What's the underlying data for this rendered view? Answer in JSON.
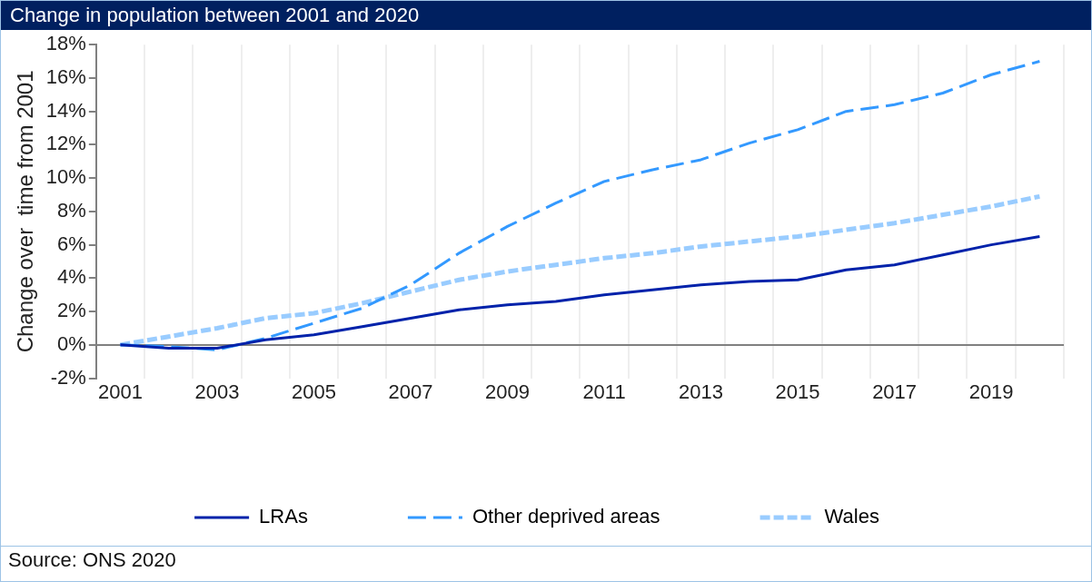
{
  "chart_data": {
    "type": "line",
    "title": "Change in population between 2001 and 2020",
    "ylabel": "Change over  time from 2001",
    "categories": [
      "2001",
      null,
      "2003",
      null,
      "2005",
      null,
      "2007",
      null,
      "2009",
      null,
      "2011",
      null,
      "2013",
      null,
      "2015",
      null,
      "2017",
      null,
      "2019",
      null
    ],
    "series": [
      {
        "name": "LRAs",
        "color": "#0022aa",
        "line_style": "solid",
        "values": [
          0,
          -0.2,
          -0.2,
          0.3,
          0.6,
          1.1,
          1.6,
          2.1,
          2.4,
          2.6,
          3.0,
          3.3,
          3.6,
          3.8,
          3.9,
          4.5,
          4.8,
          5.4,
          6.0,
          6.5
        ]
      },
      {
        "name": "Other deprived areas",
        "color": "#3399ff",
        "line_style": "dashed",
        "values": [
          0,
          -0.1,
          -0.3,
          0.4,
          1.3,
          2.2,
          3.6,
          5.5,
          7.1,
          8.5,
          9.8,
          10.5,
          11.1,
          12.1,
          12.9,
          14.0,
          14.4,
          15.1,
          16.2,
          17.0
        ]
      },
      {
        "name": "Wales",
        "color": "#99ccff",
        "line_style": "dashed",
        "values": [
          0,
          0.5,
          1.0,
          1.6,
          1.9,
          2.5,
          3.2,
          3.9,
          4.4,
          4.8,
          5.2,
          5.5,
          5.9,
          6.2,
          6.5,
          6.9,
          7.3,
          7.8,
          8.3,
          8.9
        ]
      }
    ],
    "ylim": [
      -2,
      18
    ],
    "yticks": [
      {
        "value": -2,
        "label": "-2%"
      },
      {
        "value": 0,
        "label": "0%"
      },
      {
        "value": 2,
        "label": "2%"
      },
      {
        "value": 4,
        "label": "4%"
      },
      {
        "value": 6,
        "label": "6%"
      },
      {
        "value": 8,
        "label": "8%"
      },
      {
        "value": 10,
        "label": "10%"
      },
      {
        "value": 12,
        "label": "12%"
      },
      {
        "value": 14,
        "label": "14%"
      },
      {
        "value": 16,
        "label": "16%"
      },
      {
        "value": 18,
        "label": "18%"
      }
    ],
    "grid": "x",
    "legend": "bottom",
    "marker": "none",
    "annotations": [
      "Source: ONS 2020"
    ]
  }
}
